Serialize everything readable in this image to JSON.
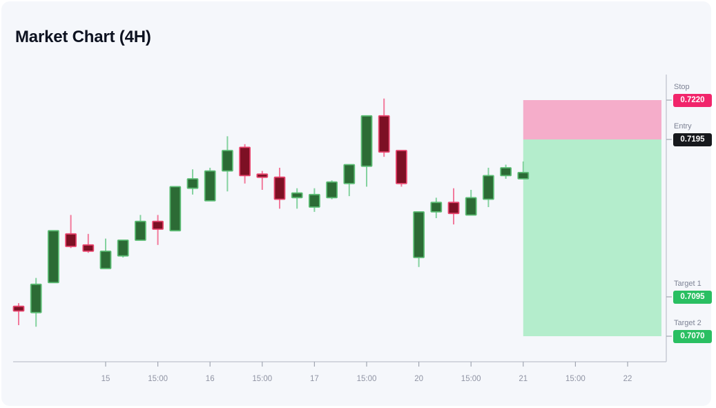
{
  "page": {
    "title": "Market Chart (4H)"
  },
  "chart_data": {
    "type": "candlestick",
    "title": "Market Chart (4H)",
    "timeframe": "4H",
    "grid": false,
    "x_axis": {
      "tick_labels": [
        "15",
        "15:00",
        "16",
        "15:00",
        "17",
        "15:00",
        "20",
        "15:00",
        "21",
        "15:00",
        "22"
      ],
      "tick_slots": [
        5,
        8,
        11,
        14,
        17,
        20,
        23,
        26,
        29,
        32,
        35
      ]
    },
    "y_axis": {
      "min": 0.7065,
      "max": 0.7225,
      "side": "right",
      "labels_shown": "levels-only"
    },
    "candles": [
      {
        "o": 0.7089,
        "h": 0.7091,
        "l": 0.7077,
        "c": 0.7086
      },
      {
        "o": 0.7085,
        "h": 0.7107,
        "l": 0.7076,
        "c": 0.7103
      },
      {
        "o": 0.7104,
        "h": 0.7137,
        "l": 0.7104,
        "c": 0.7137
      },
      {
        "o": 0.7135,
        "h": 0.7147,
        "l": 0.7126,
        "c": 0.7127
      },
      {
        "o": 0.7128,
        "h": 0.7135,
        "l": 0.7123,
        "c": 0.7124
      },
      {
        "o": 0.7113,
        "h": 0.7132,
        "l": 0.7113,
        "c": 0.7124
      },
      {
        "o": 0.7121,
        "h": 0.7131,
        "l": 0.712,
        "c": 0.7131
      },
      {
        "o": 0.7131,
        "h": 0.7147,
        "l": 0.7131,
        "c": 0.7143
      },
      {
        "o": 0.7143,
        "h": 0.7147,
        "l": 0.7128,
        "c": 0.7138
      },
      {
        "o": 0.7137,
        "h": 0.7165,
        "l": 0.7137,
        "c": 0.7165
      },
      {
        "o": 0.7164,
        "h": 0.7176,
        "l": 0.716,
        "c": 0.717
      },
      {
        "o": 0.7156,
        "h": 0.7177,
        "l": 0.7156,
        "c": 0.7175
      },
      {
        "o": 0.7175,
        "h": 0.7197,
        "l": 0.7162,
        "c": 0.7188
      },
      {
        "o": 0.719,
        "h": 0.7192,
        "l": 0.7167,
        "c": 0.7172
      },
      {
        "o": 0.7173,
        "h": 0.7175,
        "l": 0.7163,
        "c": 0.7171
      },
      {
        "o": 0.7171,
        "h": 0.7177,
        "l": 0.7151,
        "c": 0.7157
      },
      {
        "o": 0.7158,
        "h": 0.7164,
        "l": 0.7151,
        "c": 0.7161
      },
      {
        "o": 0.7152,
        "h": 0.7164,
        "l": 0.7149,
        "c": 0.716
      },
      {
        "o": 0.7158,
        "h": 0.7169,
        "l": 0.7157,
        "c": 0.7168
      },
      {
        "o": 0.7167,
        "h": 0.7179,
        "l": 0.7159,
        "c": 0.7179
      },
      {
        "o": 0.7178,
        "h": 0.721,
        "l": 0.7165,
        "c": 0.721
      },
      {
        "o": 0.721,
        "h": 0.7221,
        "l": 0.7184,
        "c": 0.7187
      },
      {
        "o": 0.7188,
        "h": 0.7188,
        "l": 0.7165,
        "c": 0.7167
      },
      {
        "o": 0.712,
        "h": 0.7149,
        "l": 0.7114,
        "c": 0.7149
      },
      {
        "o": 0.7149,
        "h": 0.7158,
        "l": 0.7145,
        "c": 0.7155
      },
      {
        "o": 0.7155,
        "h": 0.7164,
        "l": 0.7141,
        "c": 0.7148
      },
      {
        "o": 0.7147,
        "h": 0.7163,
        "l": 0.7147,
        "c": 0.7158
      },
      {
        "o": 0.7157,
        "h": 0.7177,
        "l": 0.7152,
        "c": 0.7172
      },
      {
        "o": 0.7172,
        "h": 0.7179,
        "l": 0.717,
        "c": 0.7177
      },
      {
        "o": 0.717,
        "h": 0.7181,
        "l": 0.717,
        "c": 0.7174
      }
    ],
    "levels": {
      "stop": {
        "label": "Stop",
        "value": "0.7220",
        "color": "#f1256b"
      },
      "entry": {
        "label": "Entry",
        "value": "0.7195",
        "color": "#17191d"
      },
      "target1": {
        "label": "Target 1",
        "value": "0.7095",
        "color": "#2abf62"
      },
      "target2": {
        "label": "Target 2",
        "value": "0.7070",
        "color": "#2abf62"
      }
    },
    "zones": [
      {
        "name": "stop-zone",
        "upper": "stop",
        "lower": "entry",
        "color": "#f5adca"
      },
      {
        "name": "profit-zone",
        "upper": "entry",
        "lower": "target2",
        "color": "#b4edcc"
      }
    ],
    "colors": {
      "bull_body": "#2c6b35",
      "bull_border": "#5cbc74",
      "bull_wick": "#84d29f",
      "bear_body": "#7d1024",
      "bear_border": "#e8466e",
      "bear_wick": "#f27a9c",
      "axis_line": "#c8ccd5",
      "tick_mark": "#a0a5b1",
      "tick_label": "#8f93a3",
      "card_bg": "#f5f7fb"
    }
  }
}
